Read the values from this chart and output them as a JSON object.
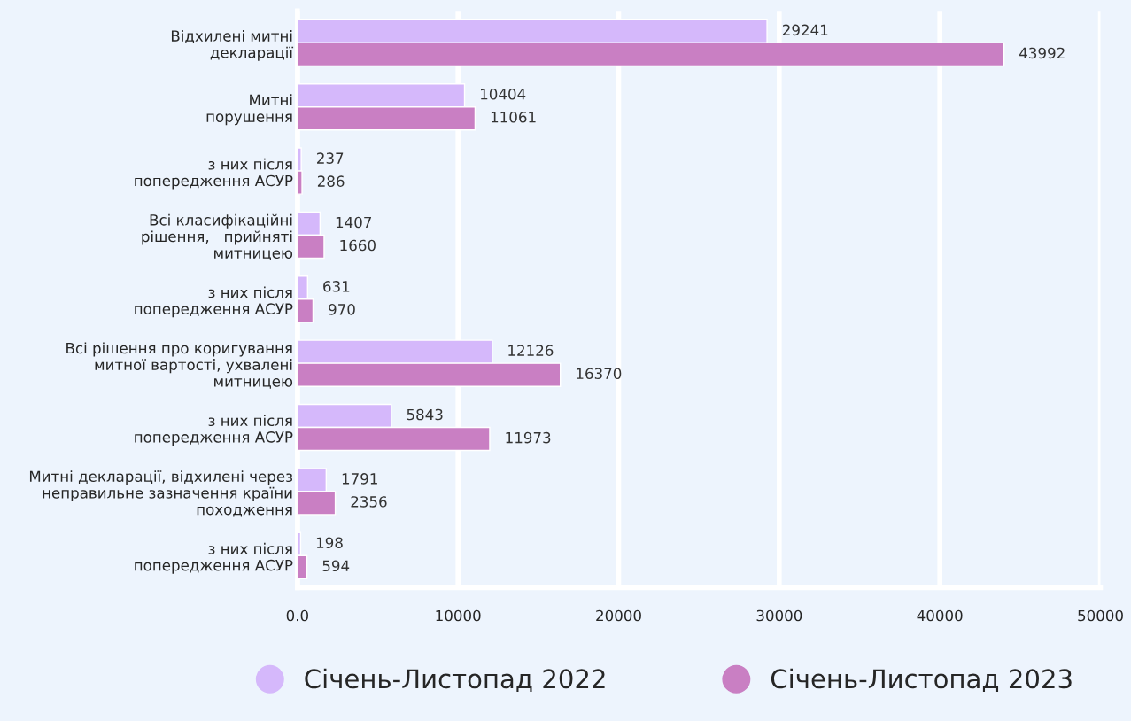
{
  "chart_data": {
    "type": "bar",
    "orientation": "horizontal",
    "data_labels": true,
    "grid": "x",
    "legend": "bottom",
    "categories": [
      "Відхилені митні\nдекларації",
      "Митні\nпорушення",
      "з них після\nпопередження АСУР",
      "Всі класифікаційні\nрішення,   прийняті\nмитницею",
      "з них після\nпопередження АСУР",
      "Всі рішення про коригування\nмитної вартості, ухвалені\nмитницею",
      "з них після\nпопередження АСУР",
      "Митні декларації, відхилені через\nнеправильне зазначення країни\nпоходження",
      "з них після\nпопередження АСУР"
    ],
    "series": [
      {
        "name": "Січень-Листопад 2022",
        "color": "#d5b8fb",
        "values": [
          29241,
          10404,
          237,
          1407,
          631,
          12126,
          5843,
          1791,
          198
        ]
      },
      {
        "name": "Січень-Листопад 2023",
        "color": "#c97fc3",
        "values": [
          43992,
          11061,
          286,
          1660,
          970,
          16370,
          11973,
          2356,
          594
        ]
      }
    ],
    "xlim": [
      0,
      50000
    ],
    "xticks": [
      {
        "value": 0,
        "label": "0.0"
      },
      10000,
      20000,
      30000,
      40000,
      50000
    ]
  }
}
